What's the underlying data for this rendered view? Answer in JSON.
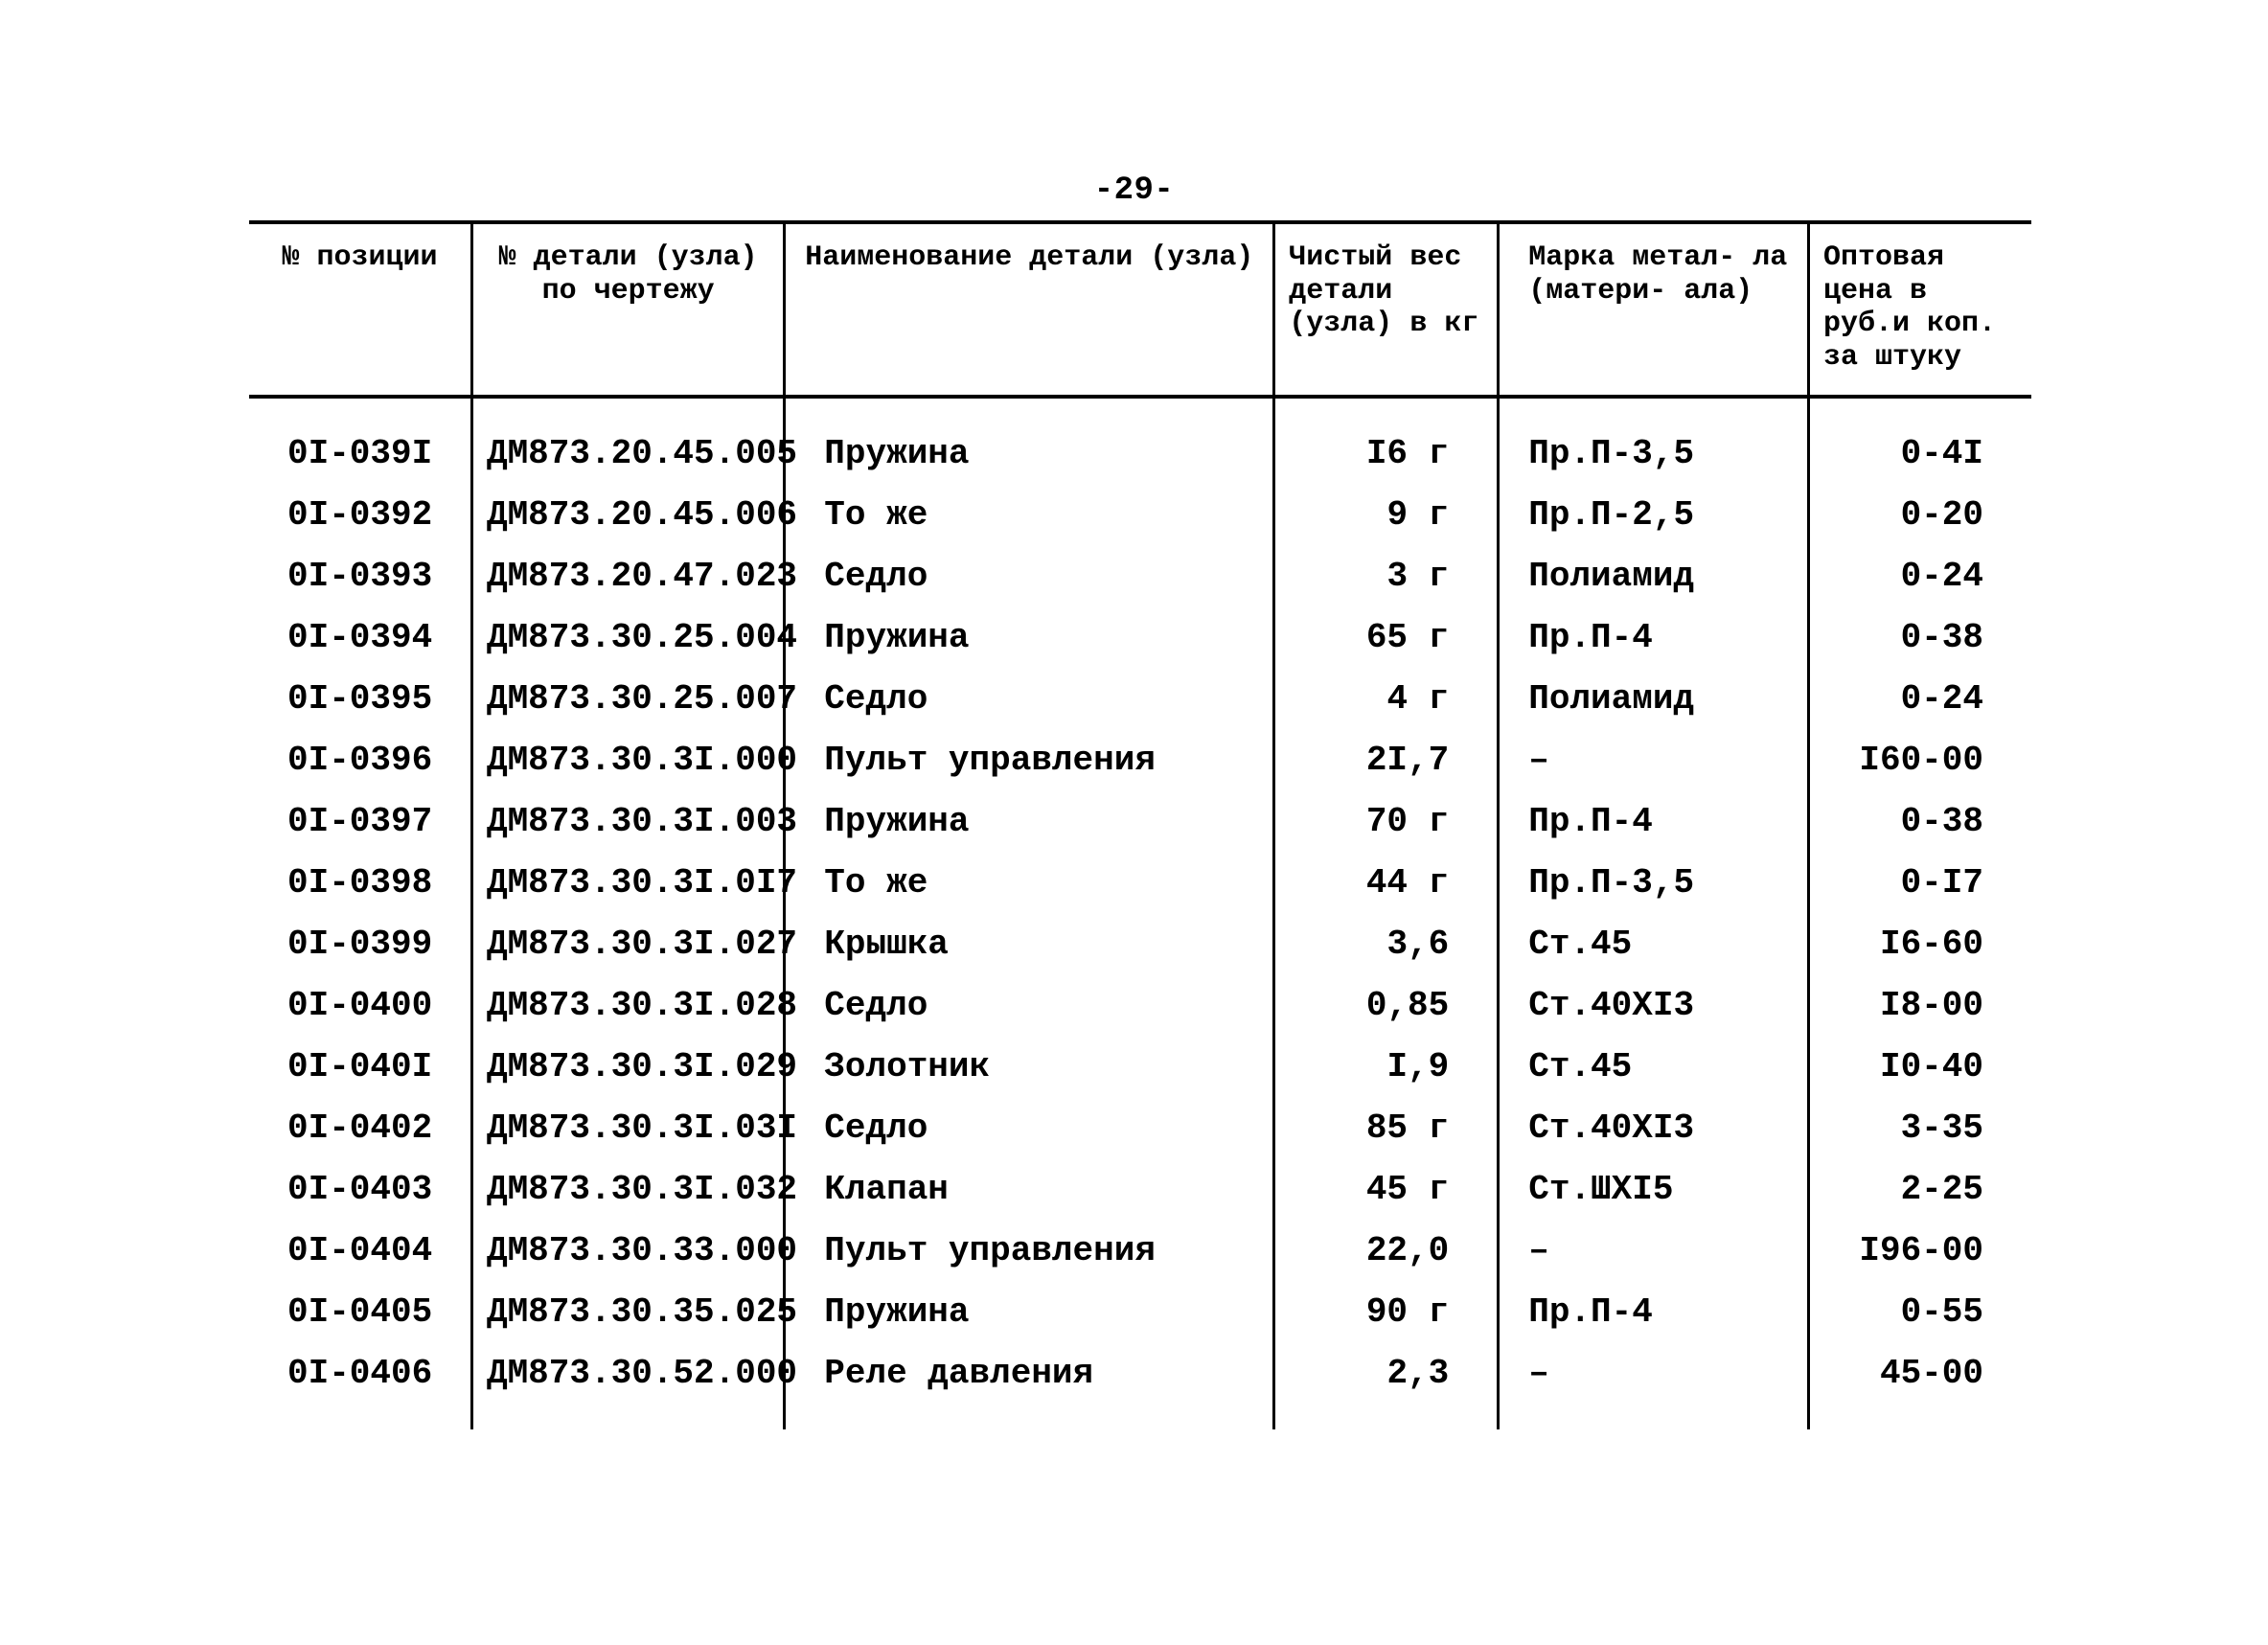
{
  "page_number": "-29-",
  "columns": {
    "pos": "№\nпозиции",
    "draw": "№ детали (узла) по\nчертежу",
    "name": "Наименование детали\n(узла)",
    "wt": "Чистый\nвес\nдетали\n(узла) в\nкг",
    "mat": "Марка метал-\nла (матери-\nала)",
    "price": "Оптовая\nцена в\nруб.и коп.\nза штуку"
  },
  "rows": [
    [
      "0I-039I",
      "ДМ873.20.45.005",
      "Пружина",
      "I6 г",
      "Пр.П-3,5",
      "0-4I"
    ],
    [
      "0I-0392",
      "ДМ873.20.45.006",
      "То же",
      "9 г",
      "Пр.П-2,5",
      "0-20"
    ],
    [
      "0I-0393",
      "ДМ873.20.47.023",
      "Седло",
      "3 г",
      "Полиамид",
      "0-24"
    ],
    [
      "0I-0394",
      "ДМ873.30.25.004",
      "Пружина",
      "65 г",
      "Пр.П-4",
      "0-38"
    ],
    [
      "0I-0395",
      "ДМ873.30.25.007",
      "Седло",
      "4 г",
      "Полиамид",
      "0-24"
    ],
    [
      "0I-0396",
      "ДМ873.30.3I.000",
      "Пульт управления",
      "2I,7",
      "–",
      "I60-00"
    ],
    [
      "0I-0397",
      "ДМ873.30.3I.003",
      "Пружина",
      "70 г",
      "Пр.П-4",
      "0-38"
    ],
    [
      "0I-0398",
      "ДМ873.30.3I.0I7",
      "То же",
      "44 г",
      "Пр.П-3,5",
      "0-I7"
    ],
    [
      "0I-0399",
      "ДМ873.30.3I.027",
      "Крышка",
      "3,6",
      "Ст.45",
      "I6-60"
    ],
    [
      "0I-0400",
      "ДМ873.30.3I.028",
      "Седло",
      "0,85",
      "Ст.40ХI3",
      "I8-00"
    ],
    [
      "0I-040I",
      "ДМ873.30.3I.029",
      "Золотник",
      "I,9",
      "Ст.45",
      "I0-40"
    ],
    [
      "0I-0402",
      "ДМ873.30.3I.03I",
      "Седло",
      "85 г",
      "Ст.40ХI3",
      "3-35"
    ],
    [
      "0I-0403",
      "ДМ873.30.3I.032",
      "Клапан",
      "45 г",
      "Ст.ШХI5",
      "2-25"
    ],
    [
      "0I-0404",
      "ДМ873.30.33.000",
      "Пульт управления",
      "22,0",
      "–",
      "I96-00"
    ],
    [
      "0I-0405",
      "ДМ873.30.35.025",
      "Пружина",
      "90 г",
      "Пр.П-4",
      "0-55"
    ],
    [
      "0I-0406",
      "ДМ873.30.52.000",
      "Реле давления",
      "2,3",
      "–",
      "45-00"
    ]
  ]
}
